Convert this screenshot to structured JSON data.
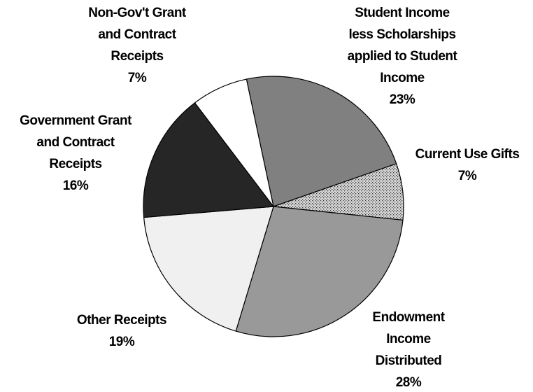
{
  "chart_data": {
    "type": "pie",
    "title": "",
    "slices": [
      {
        "label_lines": [
          "Student Income",
          "less Scholarships",
          "applied to Student",
          "Income"
        ],
        "percent_label": "23%",
        "value": 23,
        "color": "#808080",
        "pattern": "solid"
      },
      {
        "label_lines": [
          "Current Use Gifts"
        ],
        "percent_label": "7%",
        "value": 7,
        "color": "#bfbfbf",
        "pattern": "dotted"
      },
      {
        "label_lines": [
          "Endowment",
          "Income",
          "Distributed"
        ],
        "percent_label": "28%",
        "value": 28,
        "color": "#999999",
        "pattern": "solid"
      },
      {
        "label_lines": [
          "Other Receipts"
        ],
        "percent_label": "19%",
        "value": 19,
        "color": "#f0f0f0",
        "pattern": "solid"
      },
      {
        "label_lines": [
          "Government Grant",
          "and Contract",
          "Receipts"
        ],
        "percent_label": "16%",
        "value": 16,
        "color": "#262626",
        "pattern": "solid"
      },
      {
        "label_lines": [
          "Non-Gov't Grant",
          "and Contract",
          "Receipts"
        ],
        "percent_label": "7%",
        "value": 7,
        "color": "#ffffff",
        "pattern": "solid"
      }
    ],
    "legend": "none",
    "labels_placement": "outside"
  }
}
